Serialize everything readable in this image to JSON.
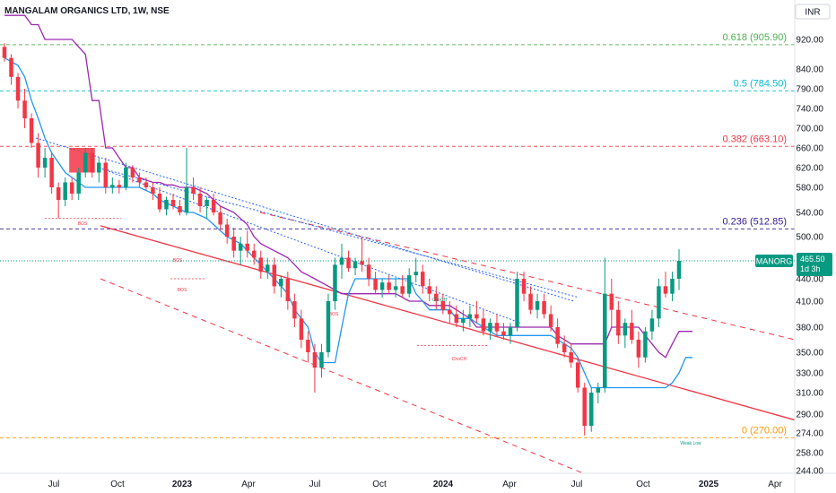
{
  "header": {
    "symbol_title": "MANGALAM ORGANICS LTD, 1W, NSE",
    "currency": "INR"
  },
  "colors": {
    "up": "#089981",
    "down": "#f23645",
    "kijun": "#9c27b0",
    "tenkan": "#2196f3",
    "trend": "#f23645",
    "fib_618": "#4caf50",
    "fib_5": "#00bcd4",
    "fib_382": "#f23645",
    "fib_236": "#311b92",
    "fib_0": "#ff9800",
    "badge": "#089981"
  },
  "chart_data": {
    "type": "candlestick",
    "x_ticks": [
      "Jul",
      "Oct",
      "2023",
      "Apr",
      "Jul",
      "Oct",
      "2024",
      "Apr",
      "Jul",
      "Oct",
      "2025",
      "Apr"
    ],
    "y_ticks": [
      920,
      840,
      790,
      740,
      700,
      660,
      620,
      580,
      540,
      500,
      440,
      410,
      380,
      350,
      330,
      310,
      290,
      274,
      258,
      244
    ],
    "ylim": [
      236,
      985
    ],
    "y_scale": "log",
    "fib_levels": [
      {
        "label": "0.618 (905.90)",
        "value": 905.9
      },
      {
        "label": "0.5 (784.50)",
        "value": 784.5
      },
      {
        "label": "0.382 (663.10)",
        "value": 663.1
      },
      {
        "label": "0.236 (512.85)",
        "value": 512.85
      },
      {
        "label": "0 (270.00)",
        "value": 270.0
      }
    ],
    "last_price": {
      "ticker": "MANORG",
      "value": "465.50",
      "countdown": "1d 3h",
      "price": 465.5
    },
    "annotations": [
      "BOS",
      "BOS",
      "BOS",
      "BOS",
      "ChoCH",
      "ChoCH",
      "Weak Low"
    ],
    "candles": [
      {
        "o": 900,
        "h": 910,
        "l": 860,
        "c": 870
      },
      {
        "o": 870,
        "h": 880,
        "l": 800,
        "c": 820
      },
      {
        "o": 820,
        "h": 830,
        "l": 740,
        "c": 760
      },
      {
        "o": 760,
        "h": 790,
        "l": 700,
        "c": 720
      },
      {
        "o": 720,
        "h": 730,
        "l": 660,
        "c": 670
      },
      {
        "o": 670,
        "h": 690,
        "l": 600,
        "c": 620
      },
      {
        "o": 620,
        "h": 660,
        "l": 600,
        "c": 640
      },
      {
        "o": 640,
        "h": 650,
        "l": 570,
        "c": 580
      },
      {
        "o": 580,
        "h": 590,
        "l": 530,
        "c": 560
      },
      {
        "o": 560,
        "h": 600,
        "l": 550,
        "c": 590
      },
      {
        "o": 590,
        "h": 600,
        "l": 560,
        "c": 570
      },
      {
        "o": 570,
        "h": 620,
        "l": 560,
        "c": 610
      },
      {
        "o": 610,
        "h": 660,
        "l": 600,
        "c": 650
      },
      {
        "o": 650,
        "h": 660,
        "l": 600,
        "c": 610
      },
      {
        "o": 610,
        "h": 640,
        "l": 590,
        "c": 630
      },
      {
        "o": 630,
        "h": 640,
        "l": 570,
        "c": 580
      },
      {
        "o": 580,
        "h": 600,
        "l": 570,
        "c": 585
      },
      {
        "o": 585,
        "h": 595,
        "l": 570,
        "c": 580
      },
      {
        "o": 580,
        "h": 630,
        "l": 575,
        "c": 620
      },
      {
        "o": 620,
        "h": 625,
        "l": 590,
        "c": 600
      },
      {
        "o": 600,
        "h": 610,
        "l": 580,
        "c": 590
      },
      {
        "o": 590,
        "h": 600,
        "l": 575,
        "c": 580
      },
      {
        "o": 580,
        "h": 590,
        "l": 560,
        "c": 570
      },
      {
        "o": 570,
        "h": 580,
        "l": 540,
        "c": 545
      },
      {
        "o": 545,
        "h": 565,
        "l": 535,
        "c": 560
      },
      {
        "o": 560,
        "h": 570,
        "l": 545,
        "c": 550
      },
      {
        "o": 550,
        "h": 560,
        "l": 535,
        "c": 540
      },
      {
        "o": 540,
        "h": 660,
        "l": 535,
        "c": 580
      },
      {
        "o": 580,
        "h": 600,
        "l": 560,
        "c": 570
      },
      {
        "o": 570,
        "h": 580,
        "l": 540,
        "c": 550
      },
      {
        "o": 550,
        "h": 565,
        "l": 530,
        "c": 560
      },
      {
        "o": 560,
        "h": 570,
        "l": 535,
        "c": 540
      },
      {
        "o": 540,
        "h": 550,
        "l": 510,
        "c": 520
      },
      {
        "o": 520,
        "h": 530,
        "l": 490,
        "c": 500
      },
      {
        "o": 500,
        "h": 515,
        "l": 470,
        "c": 480
      },
      {
        "o": 480,
        "h": 500,
        "l": 460,
        "c": 490
      },
      {
        "o": 490,
        "h": 510,
        "l": 470,
        "c": 480
      },
      {
        "o": 480,
        "h": 490,
        "l": 460,
        "c": 470
      },
      {
        "o": 470,
        "h": 480,
        "l": 440,
        "c": 450
      },
      {
        "o": 450,
        "h": 470,
        "l": 440,
        "c": 460
      },
      {
        "o": 460,
        "h": 470,
        "l": 420,
        "c": 430
      },
      {
        "o": 430,
        "h": 445,
        "l": 415,
        "c": 440
      },
      {
        "o": 440,
        "h": 450,
        "l": 400,
        "c": 410
      },
      {
        "o": 410,
        "h": 420,
        "l": 380,
        "c": 390
      },
      {
        "o": 390,
        "h": 400,
        "l": 355,
        "c": 365
      },
      {
        "o": 365,
        "h": 375,
        "l": 340,
        "c": 350
      },
      {
        "o": 350,
        "h": 360,
        "l": 310,
        "c": 335
      },
      {
        "o": 335,
        "h": 360,
        "l": 325,
        "c": 350
      },
      {
        "o": 350,
        "h": 420,
        "l": 345,
        "c": 410
      },
      {
        "o": 410,
        "h": 470,
        "l": 400,
        "c": 460
      },
      {
        "o": 460,
        "h": 490,
        "l": 440,
        "c": 470
      },
      {
        "o": 470,
        "h": 480,
        "l": 450,
        "c": 455
      },
      {
        "o": 455,
        "h": 470,
        "l": 445,
        "c": 465
      },
      {
        "o": 465,
        "h": 500,
        "l": 450,
        "c": 460
      },
      {
        "o": 460,
        "h": 470,
        "l": 430,
        "c": 440
      },
      {
        "o": 440,
        "h": 450,
        "l": 420,
        "c": 425
      },
      {
        "o": 425,
        "h": 440,
        "l": 415,
        "c": 435
      },
      {
        "o": 435,
        "h": 445,
        "l": 420,
        "c": 425
      },
      {
        "o": 425,
        "h": 440,
        "l": 415,
        "c": 430
      },
      {
        "o": 430,
        "h": 445,
        "l": 415,
        "c": 420
      },
      {
        "o": 420,
        "h": 455,
        "l": 415,
        "c": 445
      },
      {
        "o": 445,
        "h": 470,
        "l": 435,
        "c": 450
      },
      {
        "o": 450,
        "h": 460,
        "l": 420,
        "c": 430
      },
      {
        "o": 430,
        "h": 440,
        "l": 410,
        "c": 420
      },
      {
        "o": 420,
        "h": 430,
        "l": 400,
        "c": 410
      },
      {
        "o": 410,
        "h": 420,
        "l": 395,
        "c": 400
      },
      {
        "o": 400,
        "h": 410,
        "l": 385,
        "c": 395
      },
      {
        "o": 395,
        "h": 405,
        "l": 380,
        "c": 385
      },
      {
        "o": 385,
        "h": 400,
        "l": 375,
        "c": 390
      },
      {
        "o": 390,
        "h": 405,
        "l": 380,
        "c": 395
      },
      {
        "o": 395,
        "h": 410,
        "l": 385,
        "c": 390
      },
      {
        "o": 390,
        "h": 400,
        "l": 370,
        "c": 375
      },
      {
        "o": 375,
        "h": 390,
        "l": 365,
        "c": 385
      },
      {
        "o": 385,
        "h": 395,
        "l": 370,
        "c": 375
      },
      {
        "o": 375,
        "h": 385,
        "l": 365,
        "c": 370
      },
      {
        "o": 370,
        "h": 385,
        "l": 360,
        "c": 380
      },
      {
        "o": 380,
        "h": 450,
        "l": 375,
        "c": 440
      },
      {
        "o": 440,
        "h": 450,
        "l": 410,
        "c": 420
      },
      {
        "o": 420,
        "h": 430,
        "l": 395,
        "c": 400
      },
      {
        "o": 400,
        "h": 420,
        "l": 390,
        "c": 410
      },
      {
        "o": 410,
        "h": 420,
        "l": 390,
        "c": 395
      },
      {
        "o": 395,
        "h": 405,
        "l": 375,
        "c": 380
      },
      {
        "o": 380,
        "h": 390,
        "l": 355,
        "c": 360
      },
      {
        "o": 360,
        "h": 370,
        "l": 345,
        "c": 350
      },
      {
        "o": 350,
        "h": 360,
        "l": 335,
        "c": 340
      },
      {
        "o": 340,
        "h": 345,
        "l": 310,
        "c": 315
      },
      {
        "o": 315,
        "h": 320,
        "l": 272,
        "c": 280
      },
      {
        "o": 280,
        "h": 315,
        "l": 275,
        "c": 310
      },
      {
        "o": 310,
        "h": 320,
        "l": 300,
        "c": 315
      },
      {
        "o": 315,
        "h": 470,
        "l": 310,
        "c": 420
      },
      {
        "o": 420,
        "h": 440,
        "l": 380,
        "c": 400
      },
      {
        "o": 400,
        "h": 410,
        "l": 360,
        "c": 370
      },
      {
        "o": 370,
        "h": 390,
        "l": 355,
        "c": 385
      },
      {
        "o": 385,
        "h": 400,
        "l": 360,
        "c": 365
      },
      {
        "o": 365,
        "h": 375,
        "l": 335,
        "c": 345
      },
      {
        "o": 345,
        "h": 380,
        "l": 340,
        "c": 375
      },
      {
        "o": 375,
        "h": 400,
        "l": 365,
        "c": 390
      },
      {
        "o": 390,
        "h": 440,
        "l": 380,
        "c": 430
      },
      {
        "o": 430,
        "h": 450,
        "l": 415,
        "c": 420
      },
      {
        "o": 420,
        "h": 450,
        "l": 410,
        "c": 440
      },
      {
        "o": 440,
        "h": 482,
        "l": 425,
        "c": 465.5
      }
    ],
    "kijun": [
      985,
      985,
      985,
      985,
      960,
      960,
      920,
      920,
      920,
      920,
      920,
      900,
      880,
      760,
      760,
      660,
      660,
      640,
      620,
      620,
      600,
      595,
      590,
      590,
      585,
      585,
      580,
      580,
      580,
      575,
      570,
      560,
      550,
      545,
      540,
      530,
      520,
      500,
      490,
      485,
      480,
      475,
      470,
      460,
      450,
      445,
      440,
      435,
      430,
      425,
      420,
      420,
      420,
      420,
      420,
      420,
      420,
      420,
      420,
      415,
      410,
      410,
      410,
      405,
      405,
      405,
      405,
      400,
      395,
      390,
      380,
      380,
      380,
      380,
      380,
      380,
      380,
      380,
      380,
      380,
      380,
      380,
      370,
      365,
      360,
      360,
      360,
      360,
      360,
      360,
      380,
      380,
      380,
      380,
      380,
      370,
      360,
      350,
      345,
      360,
      375,
      375,
      375
    ],
    "tenkan": [
      870,
      860,
      850,
      820,
      760,
      720,
      680,
      650,
      630,
      610,
      600,
      590,
      580,
      580,
      580,
      580,
      580,
      580,
      580,
      580,
      580,
      575,
      570,
      560,
      555,
      550,
      545,
      540,
      540,
      535,
      530,
      520,
      510,
      500,
      495,
      490,
      480,
      470,
      460,
      450,
      440,
      430,
      420,
      400,
      390,
      380,
      350,
      340,
      340,
      340,
      380,
      420,
      440,
      440,
      440,
      440,
      440,
      440,
      440,
      440,
      440,
      420,
      410,
      400,
      400,
      400,
      400,
      390,
      390,
      390,
      385,
      380,
      375,
      370,
      370,
      370,
      370,
      370,
      370,
      370,
      370,
      370,
      365,
      360,
      355,
      345,
      330,
      315,
      315,
      315,
      315,
      315,
      315,
      315,
      315,
      315,
      315,
      315,
      315,
      320,
      330,
      345,
      345
    ]
  }
}
